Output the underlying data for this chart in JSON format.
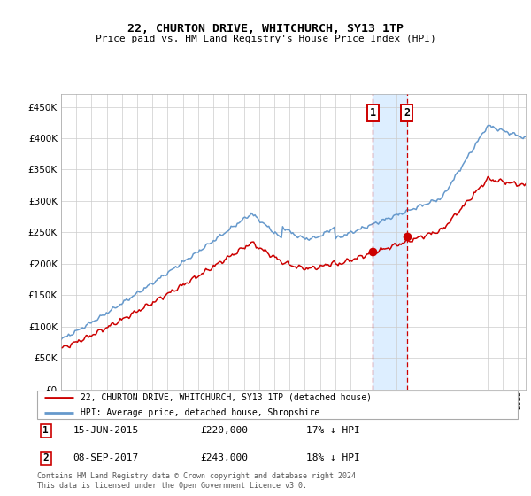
{
  "title": "22, CHURTON DRIVE, WHITCHURCH, SY13 1TP",
  "subtitle": "Price paid vs. HM Land Registry's House Price Index (HPI)",
  "sale1_date": "15-JUN-2015",
  "sale1_price": 220000,
  "sale1_pct": "17%",
  "sale1_year": 2015.46,
  "sale2_date": "08-SEP-2017",
  "sale2_price": 243000,
  "sale2_pct": "18%",
  "sale2_year": 2017.69,
  "legend_label_red": "22, CHURTON DRIVE, WHITCHURCH, SY13 1TP (detached house)",
  "legend_label_blue": "HPI: Average price, detached house, Shropshire",
  "footer": "Contains HM Land Registry data © Crown copyright and database right 2024.\nThis data is licensed under the Open Government Licence v3.0.",
  "red_color": "#cc0000",
  "blue_color": "#6699cc",
  "highlight_color": "#ddeeff",
  "ylim": [
    0,
    470000
  ],
  "yticks": [
    0,
    50000,
    100000,
    150000,
    200000,
    250000,
    300000,
    350000,
    400000,
    450000
  ],
  "xlim_start": 1995.0,
  "xlim_end": 2025.5
}
